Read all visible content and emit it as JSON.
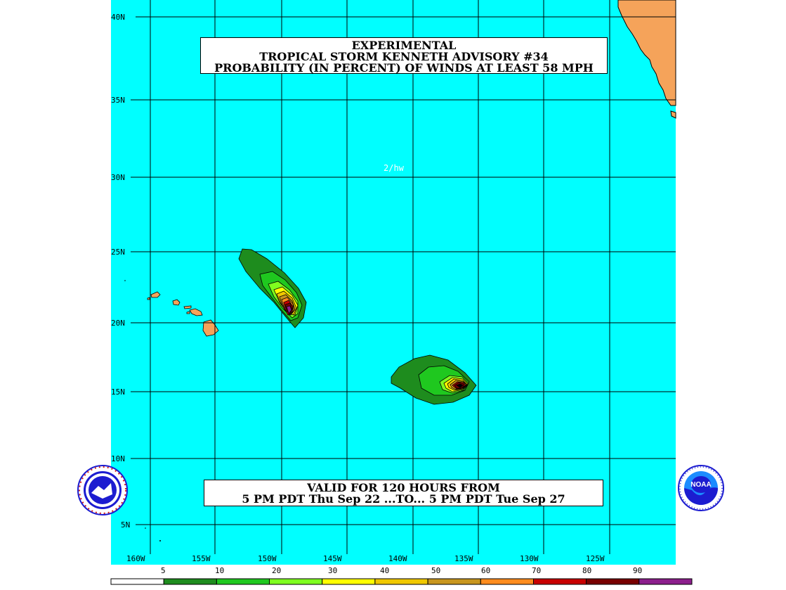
{
  "title": {
    "line1": "EXPERIMENTAL",
    "line2": "TROPICAL STORM KENNETH ADVISORY #34",
    "line3": "PROBABILITY (IN PERCENT) OF WINDS AT LEAST 58 MPH"
  },
  "valid": {
    "line1": "VALID FOR 120 HOURS FROM",
    "line2": "5 PM PDT Thu Sep 22 ...TO... 5 PM PDT Tue Sep 27"
  },
  "forecaster_tag": "2/hw",
  "lat_labels": [
    "40N",
    "35N",
    "30N",
    "25N",
    "20N",
    "15N",
    "10N",
    "5N"
  ],
  "lon_labels": [
    "160W",
    "155W",
    "150W",
    "145W",
    "140W",
    "135W",
    "130W",
    "125W"
  ],
  "legend": {
    "values": [
      "5",
      "10",
      "20",
      "30",
      "40",
      "50",
      "60",
      "70",
      "80",
      "90"
    ],
    "colors": [
      "#ffffff",
      "#1e8c1e",
      "#1fc81f",
      "#7fff1f",
      "#ffff00",
      "#f0c800",
      "#c8961e",
      "#ff8c1e",
      "#c80000",
      "#780000",
      "#8c1e8c"
    ]
  },
  "colors": {
    "ocean": "#00ffff",
    "land": "#f5a35a",
    "grid": "#000000"
  },
  "logos": {
    "left": "nws-logo",
    "right_text": "NOAA"
  }
}
